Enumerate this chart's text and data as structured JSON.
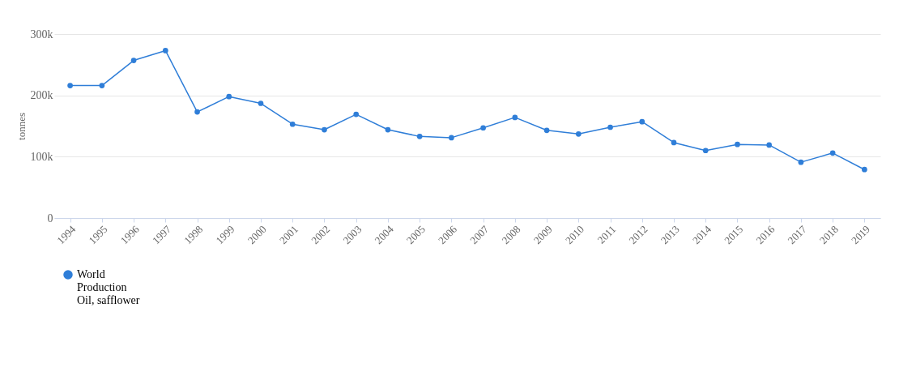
{
  "chart_data": {
    "type": "line",
    "ylabel": "tonnes",
    "categories": [
      "1994",
      "1995",
      "1996",
      "1997",
      "1998",
      "1999",
      "2000",
      "2001",
      "2002",
      "2003",
      "2004",
      "2005",
      "2006",
      "2007",
      "2008",
      "2009",
      "2010",
      "2011",
      "2012",
      "2013",
      "2014",
      "2015",
      "2016",
      "2017",
      "2018",
      "2019"
    ],
    "series": [
      {
        "name": "World\nProduction\nOil, safflower",
        "color": "#2f7ed8",
        "values": [
          216000,
          216000,
          257000,
          273000,
          173000,
          198000,
          187000,
          153000,
          144000,
          169000,
          144000,
          133000,
          131000,
          147000,
          164000,
          143000,
          137000,
          148000,
          157000,
          123000,
          110000,
          120000,
          119000,
          91000,
          106000,
          79000
        ]
      }
    ],
    "ylim": [
      0,
      300000
    ],
    "yticks": [
      {
        "value": 0,
        "label": "0"
      },
      {
        "value": 100000,
        "label": "100k"
      },
      {
        "value": 200000,
        "label": "200k"
      },
      {
        "value": 300000,
        "label": "300k"
      }
    ],
    "grid": "y",
    "legend": "bottom",
    "marker": "circle"
  }
}
